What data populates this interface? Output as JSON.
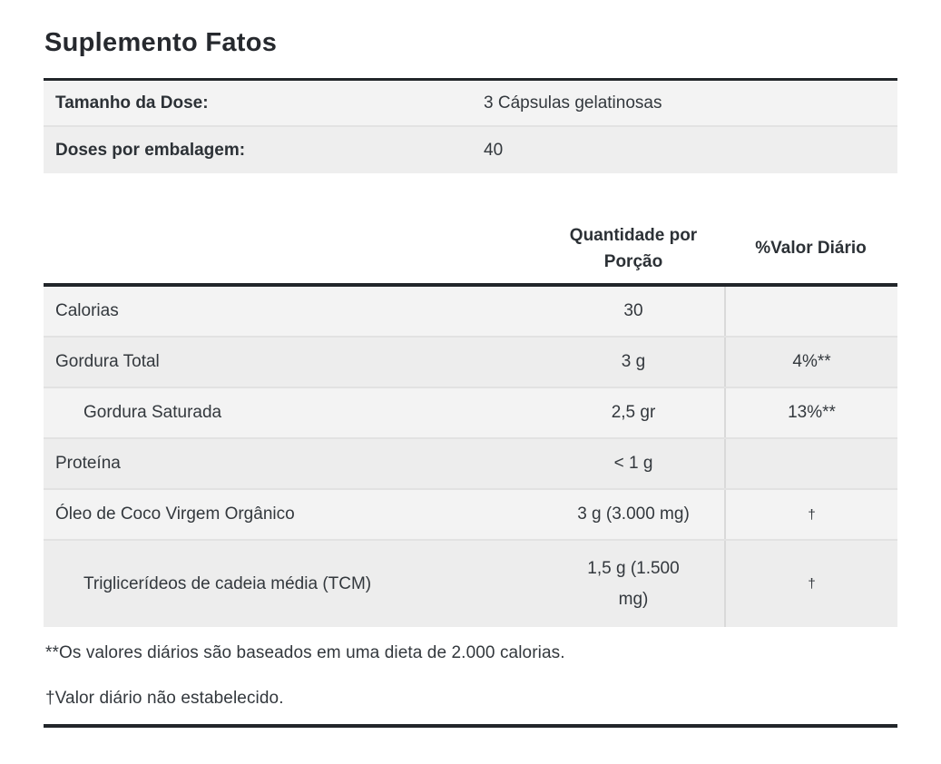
{
  "title": "Suplemento Fatos",
  "serving_info": {
    "rows": [
      {
        "label": "Tamanho da Dose:",
        "value": "3 Cápsulas gelatinosas"
      },
      {
        "label": "Doses por embalagem:",
        "value": "40"
      }
    ]
  },
  "facts_table": {
    "headers": {
      "amount": "Quantidade por Porção",
      "daily_value": "%Valor Diário"
    },
    "rows": [
      {
        "label": "Calorias",
        "amount": "30",
        "dv": "",
        "indent": false
      },
      {
        "label": "Gordura Total",
        "amount": "3 g",
        "dv": "4%**",
        "indent": false
      },
      {
        "label": "Gordura Saturada",
        "amount": "2,5 gr",
        "dv": "13%**",
        "indent": true
      },
      {
        "label": "Proteína",
        "amount": "< 1 g",
        "dv": "",
        "indent": false
      },
      {
        "label": "Óleo de Coco Virgem Orgânico",
        "amount": "3 g (3.000 mg)",
        "dv": "†",
        "indent": false
      },
      {
        "label": "Triglicerídeos de cadeia média (TCM)",
        "amount": "1,5 g (1.500 mg)",
        "dv": "†",
        "indent": true
      }
    ]
  },
  "footnotes": [
    "**Os valores diários são baseados em uma dieta de 2.000 calorias.",
    "†Valor diário não estabelecido."
  ],
  "colors": {
    "row_bg_light": "#f3f3f3",
    "row_bg_dark": "#ededed",
    "separator": "#e2e2e2",
    "column_divider": "#d9d9d9",
    "rule": "#22262a",
    "text": "#33383d"
  }
}
